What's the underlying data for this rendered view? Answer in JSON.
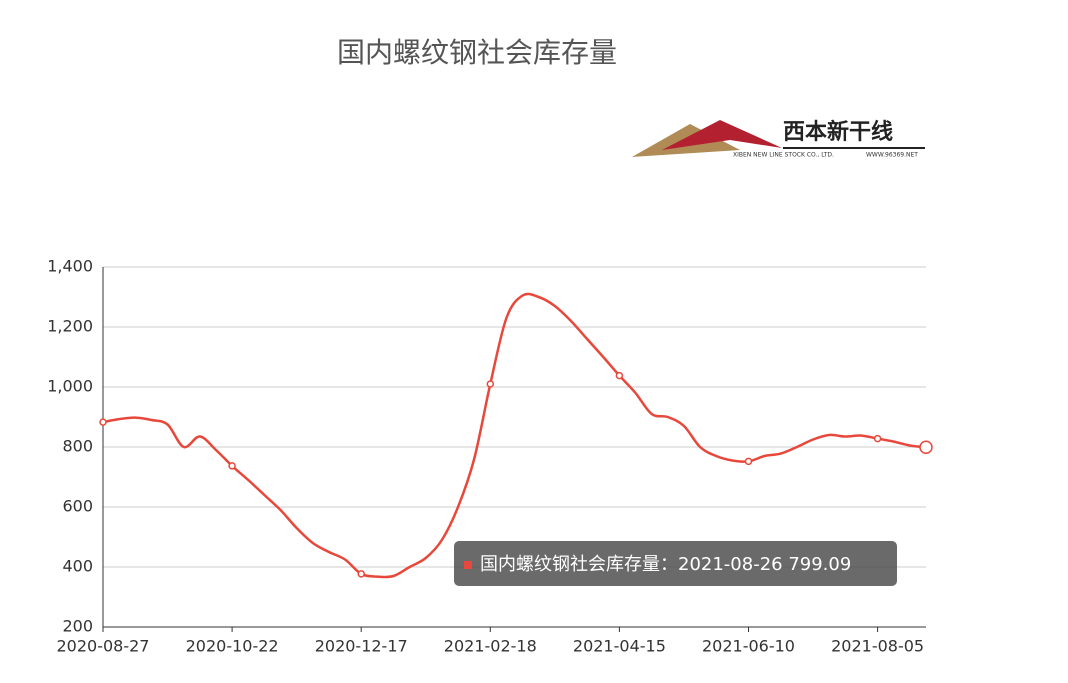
{
  "chart_data": {
    "type": "line",
    "title": "国内螺纹钢社会库存量",
    "logo": {
      "name": "西本新干线",
      "company": "XIBEN NEW LINE STOCK CO., LTD.",
      "site": "WWW.96369.NET"
    },
    "categories": [
      "2020-08-27",
      null,
      null,
      null,
      null,
      null,
      null,
      null,
      "2020-10-22",
      null,
      null,
      null,
      null,
      null,
      null,
      null,
      "2020-12-17",
      null,
      null,
      null,
      null,
      null,
      null,
      null,
      "2021-02-18",
      null,
      null,
      null,
      null,
      null,
      null,
      null,
      "2021-04-15",
      null,
      null,
      null,
      null,
      null,
      null,
      null,
      "2021-06-10",
      null,
      null,
      null,
      null,
      null,
      null,
      null,
      "2021-08-05",
      null,
      null,
      "2021-08-26"
    ],
    "series": [
      {
        "name": "国内螺纹钢社会库存量",
        "color": "#e8483b",
        "values": [
          883,
          893,
          898,
          890,
          875,
          800,
          835,
          790,
          737,
          690,
          640,
          590,
          530,
          480,
          450,
          425,
          377,
          368,
          370,
          400,
          430,
          490,
          600,
          760,
          1010,
          1230,
          1305,
          1300,
          1270,
          1220,
          1160,
          1100,
          1038,
          980,
          910,
          900,
          870,
          800,
          770,
          755,
          752,
          770,
          778,
          800,
          825,
          840,
          835,
          838,
          828,
          818,
          805,
          799.09
        ]
      }
    ],
    "ylim": [
      200,
      1400
    ],
    "yticks": [
      200,
      400,
      600,
      800,
      {
        "value": 1000,
        "label": "1,000"
      },
      {
        "value": 1200,
        "label": "1,200"
      },
      {
        "value": 1400,
        "label": "1,400"
      }
    ],
    "grid": true,
    "tooltip": "国内螺纹钢社会库存量：2021-08-26 799.09"
  }
}
